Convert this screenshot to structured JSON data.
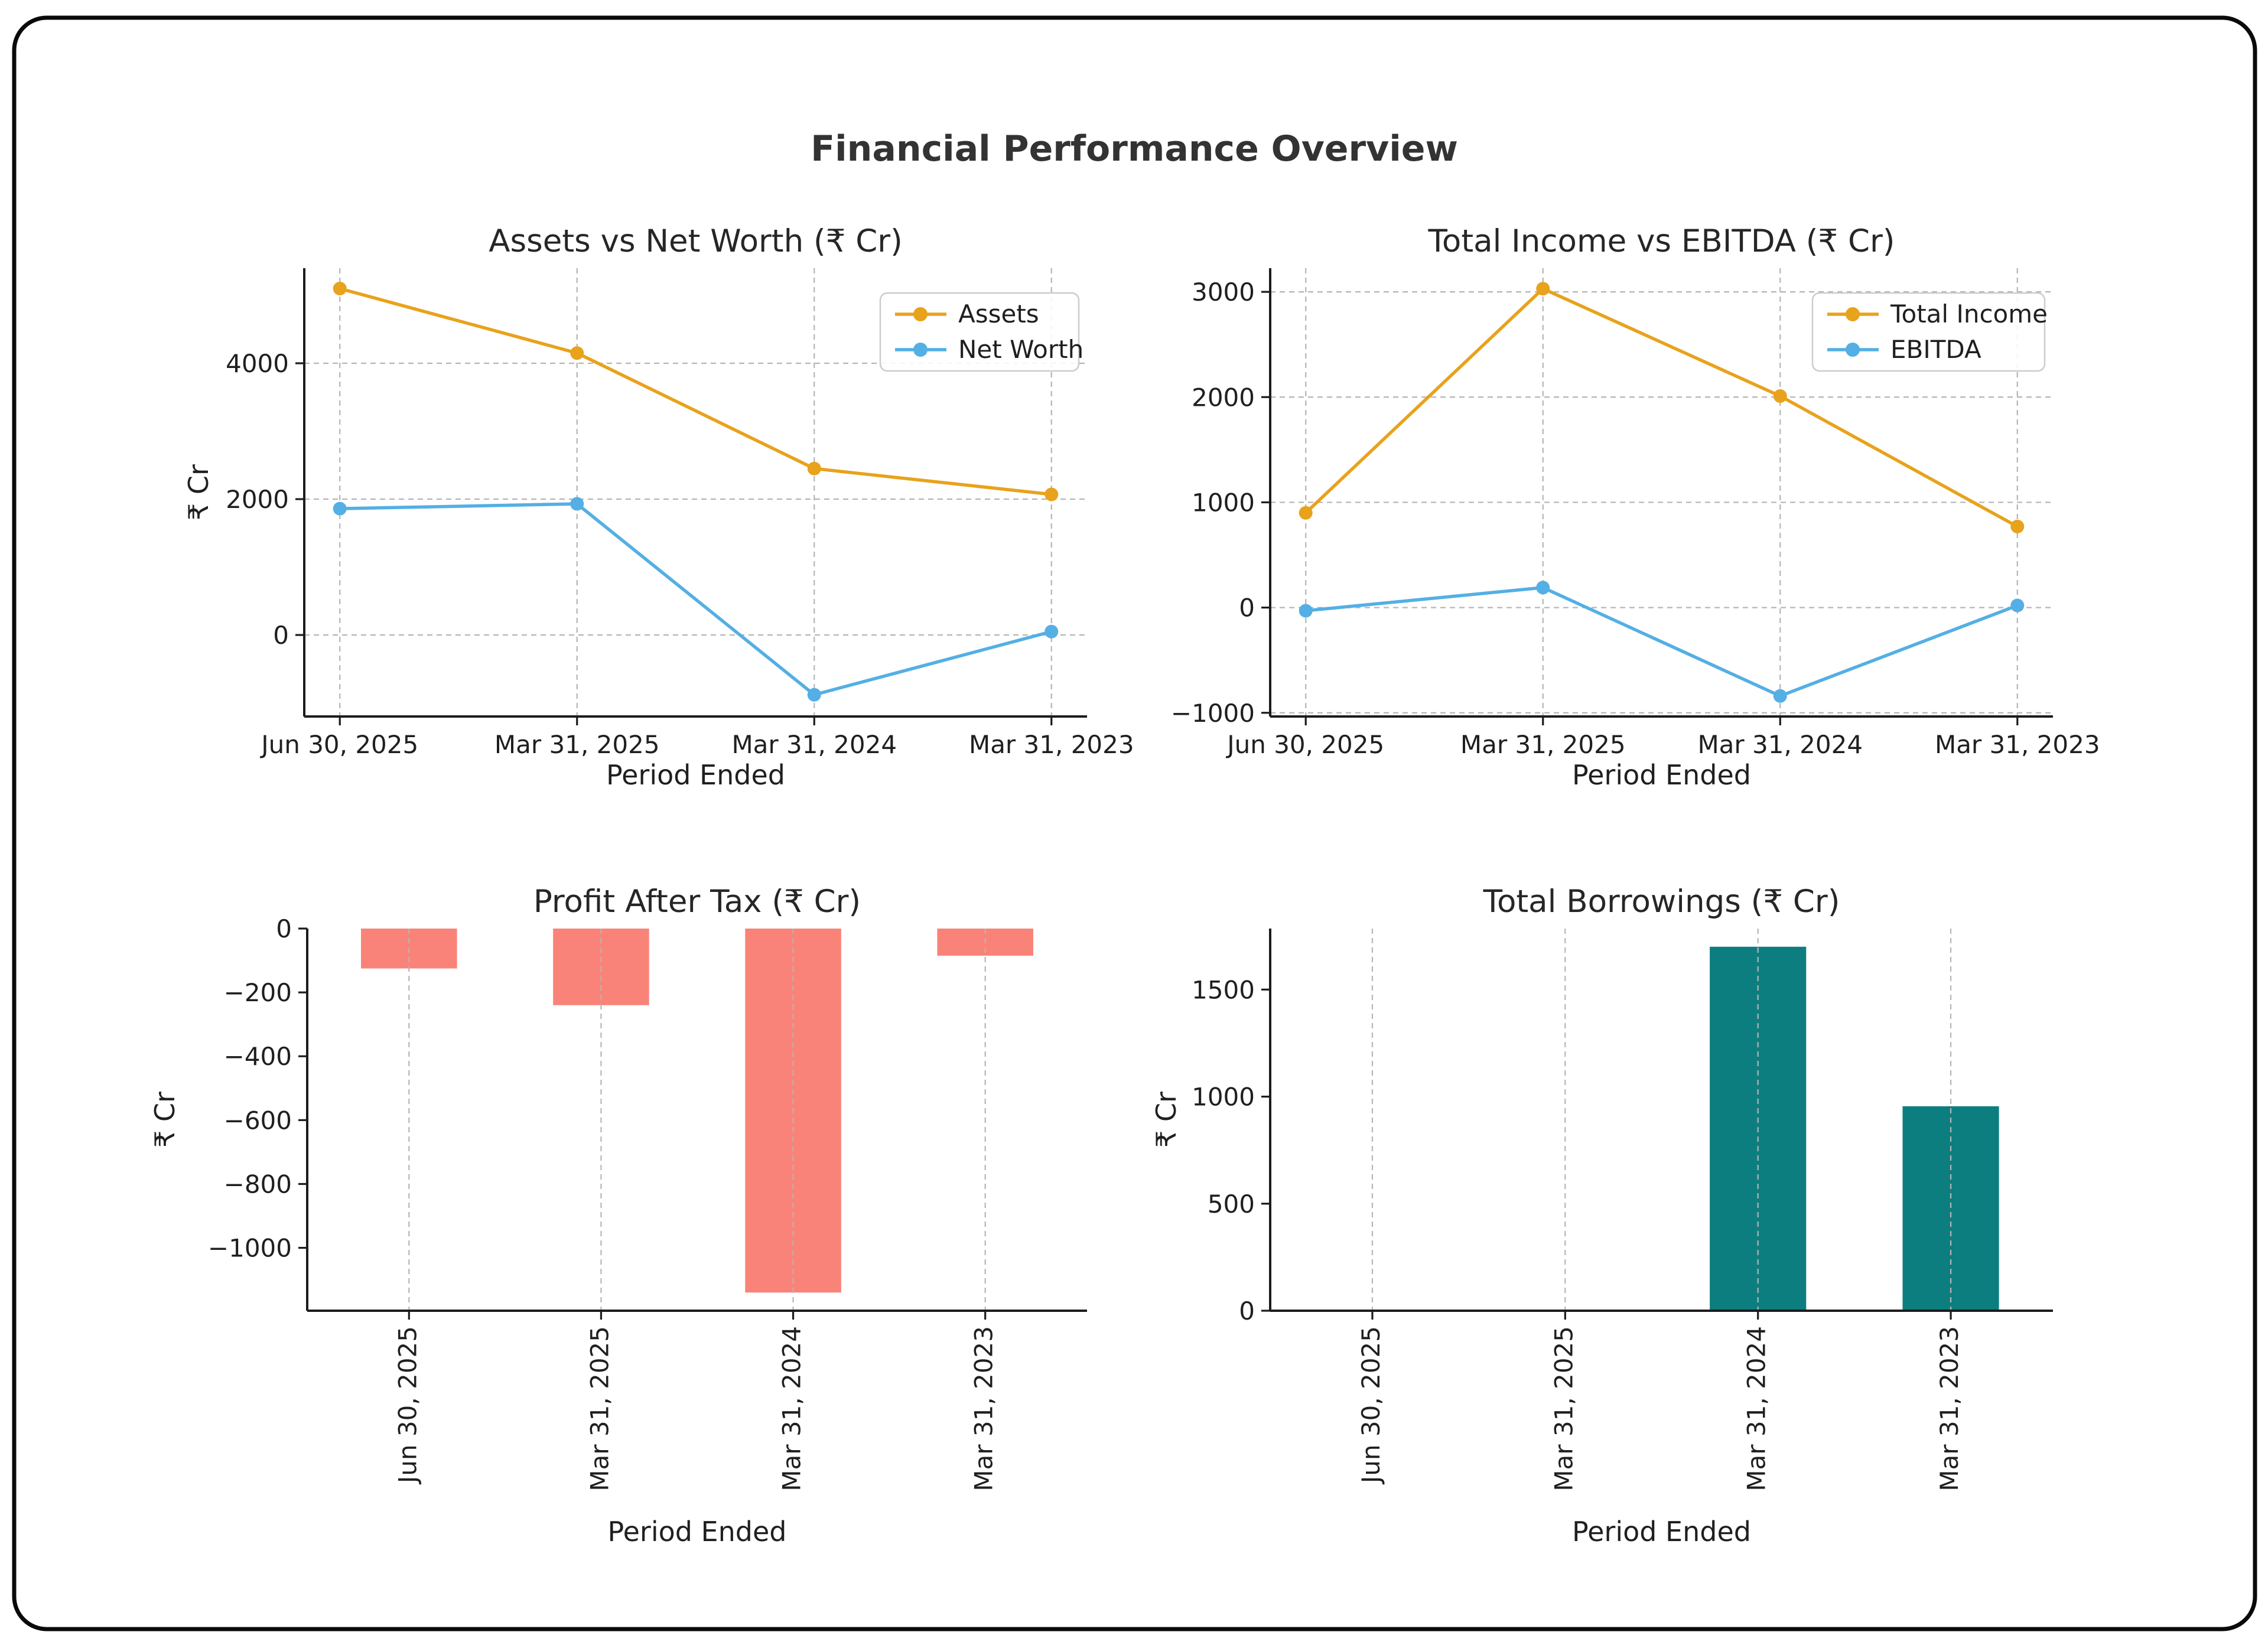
{
  "figure": {
    "title": "Financial Performance Overview"
  },
  "axis": {
    "xlabel": "Period Ended",
    "ylabel": "₹ Cr"
  },
  "categories": [
    "Jun 30, 2025",
    "Mar 31, 2025",
    "Mar 31, 2024",
    "Mar 31, 2023"
  ],
  "colors": {
    "orange": "#E8A21C",
    "blue": "#54AFE4",
    "salmon": "#F98378",
    "teal": "#0D7E7F",
    "text": "#1f1f1f",
    "title_text": "#333333",
    "grid": "#b5b5b5",
    "spine": "#1c1c1c",
    "legend_border": "#cccccc",
    "card_border": "#0a0a0a"
  },
  "chart_data": [
    {
      "id": "assets_networth",
      "type": "line",
      "title": "Assets vs Net Worth (₹ Cr)",
      "xlabel": "Period Ended",
      "ylabel": "₹ Cr",
      "categories": [
        "Jun 30, 2025",
        "Mar 31, 2025",
        "Mar 31, 2024",
        "Mar 31, 2023"
      ],
      "series": [
        {
          "name": "Assets",
          "color": "#E8A21C",
          "values": [
            5100,
            4150,
            2450,
            2070
          ]
        },
        {
          "name": "Net Worth",
          "color": "#54AFE4",
          "values": [
            1860,
            1930,
            -880,
            50
          ]
        }
      ],
      "yticks": [
        0,
        2000,
        4000
      ],
      "ylim": [
        -1200,
        5400
      ],
      "grid": "both",
      "legend": true,
      "legend_position": "upper right",
      "rotate_xticks": false
    },
    {
      "id": "income_ebitda",
      "type": "line",
      "title": "Total Income vs EBITDA (₹ Cr)",
      "xlabel": "Period Ended",
      "ylabel": "",
      "categories": [
        "Jun 30, 2025",
        "Mar 31, 2025",
        "Mar 31, 2024",
        "Mar 31, 2023"
      ],
      "series": [
        {
          "name": "Total Income",
          "color": "#E8A21C",
          "values": [
            900,
            3030,
            2010,
            770
          ]
        },
        {
          "name": "EBITDA",
          "color": "#54AFE4",
          "values": [
            -30,
            190,
            -840,
            20
          ]
        }
      ],
      "yticks": [
        -1000,
        0,
        1000,
        2000,
        3000
      ],
      "ylim": [
        -1035,
        3225
      ],
      "grid": "both",
      "legend": true,
      "legend_position": "upper right",
      "rotate_xticks": false
    },
    {
      "id": "pat",
      "type": "bar",
      "title": "Profit After Tax (₹ Cr)",
      "xlabel": "Period Ended",
      "ylabel": "₹ Cr",
      "categories": [
        "Jun 30, 2025",
        "Mar 31, 2025",
        "Mar 31, 2024",
        "Mar 31, 2023"
      ],
      "series": [
        {
          "name": "Profit After Tax",
          "color": "#F98378",
          "values": [
            -125,
            -240,
            -1140,
            -85
          ]
        }
      ],
      "yticks": [
        0,
        -200,
        -400,
        -600,
        -800,
        -1000
      ],
      "ylim": [
        -1197,
        0
      ],
      "grid": "x",
      "legend": false,
      "rotate_xticks": true
    },
    {
      "id": "borrowings",
      "type": "bar",
      "title": "Total Borrowings (₹ Cr)",
      "xlabel": "Period Ended",
      "ylabel": "₹ Cr",
      "categories": [
        "Jun 30, 2025",
        "Mar 31, 2025",
        "Mar 31, 2024",
        "Mar 31, 2023"
      ],
      "series": [
        {
          "name": "Total Borrowings",
          "color": "#0D7E7F",
          "values": [
            0,
            0,
            1700,
            955
          ]
        }
      ],
      "yticks": [
        0,
        500,
        1000,
        1500
      ],
      "ylim": [
        0,
        1785
      ],
      "grid": "x",
      "legend": false,
      "rotate_xticks": true
    }
  ]
}
